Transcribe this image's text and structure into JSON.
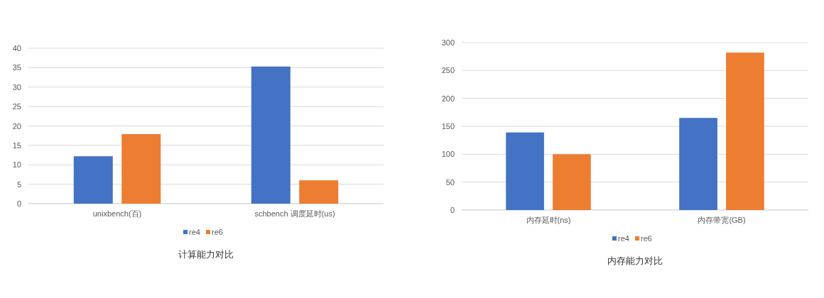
{
  "chart_data": [
    {
      "type": "bar",
      "title": "计算能力对比",
      "categories": [
        "unixbench(百)",
        "schbench 调度延时(us)"
      ],
      "series": [
        {
          "name": "re4",
          "color": "#4472c4",
          "values": [
            12.2,
            35.3
          ]
        },
        {
          "name": "re6",
          "color": "#ed7d31",
          "values": [
            17.9,
            6.0
          ]
        }
      ],
      "ylim": [
        0,
        40
      ],
      "yticks": [
        0,
        5,
        10,
        15,
        20,
        25,
        30,
        35,
        40
      ],
      "grid": "y",
      "legend": "bottom"
    },
    {
      "type": "bar",
      "title": "内存能力对比",
      "categories": [
        "内存延时(ns)",
        "内存带宽(GB)"
      ],
      "series": [
        {
          "name": "re4",
          "color": "#4472c4",
          "values": [
            139,
            165
          ]
        },
        {
          "name": "re6",
          "color": "#ed7d31",
          "values": [
            100,
            282
          ]
        }
      ],
      "ylim": [
        0,
        300
      ],
      "yticks": [
        0,
        50,
        100,
        150,
        200,
        250,
        300
      ],
      "grid": "y",
      "legend": "bottom"
    }
  ]
}
